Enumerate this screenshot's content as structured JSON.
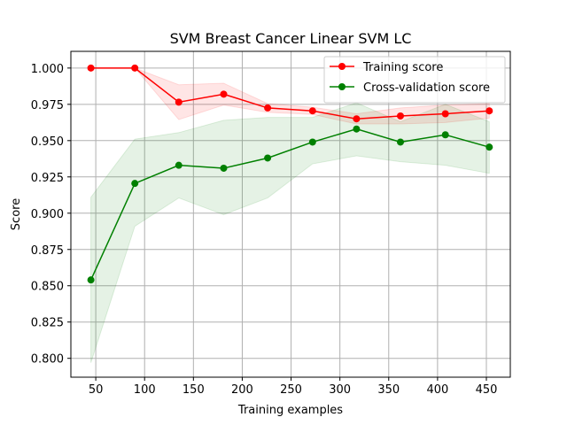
{
  "chart_data": {
    "type": "line",
    "title": "SVM Breast Cancer Linear SVM LC",
    "xlabel": "Training examples",
    "ylabel": "Score",
    "xlim": [
      24.5,
      474.5
    ],
    "ylim": [
      0.787,
      1.0115
    ],
    "xticks": [
      50,
      100,
      150,
      200,
      250,
      300,
      350,
      400,
      450
    ],
    "xtick_labels": [
      "50",
      "100",
      "150",
      "200",
      "250",
      "300",
      "350",
      "400",
      "450"
    ],
    "yticks": [
      0.8,
      0.825,
      0.85,
      0.875,
      0.9,
      0.925,
      0.95,
      0.975,
      1.0
    ],
    "ytick_labels": [
      "0.800",
      "0.825",
      "0.850",
      "0.875",
      "0.900",
      "0.925",
      "0.950",
      "0.975",
      "1.000"
    ],
    "grid": true,
    "legend_position": "top-right",
    "x": [
      45,
      90,
      135,
      181,
      226,
      272,
      317,
      362,
      408,
      453
    ],
    "series": [
      {
        "name": "Training score",
        "color": "#ff0000",
        "marker": "circle",
        "values": [
          1.0,
          1.0,
          0.9765,
          0.982,
          0.9725,
          0.9705,
          0.965,
          0.967,
          0.9685,
          0.9705
        ],
        "band_lower": [
          1.0,
          1.0,
          0.9645,
          0.9745,
          0.9695,
          0.968,
          0.9615,
          0.9615,
          0.9625,
          0.9655
        ],
        "band_upper": [
          1.0,
          1.0,
          0.9885,
          0.9895,
          0.9755,
          0.973,
          0.9685,
          0.9725,
          0.9745,
          0.9755
        ],
        "band_color": "#ff0000"
      },
      {
        "name": "Cross-validation score",
        "color": "#008000",
        "marker": "circle",
        "values": [
          0.854,
          0.9205,
          0.933,
          0.931,
          0.938,
          0.949,
          0.958,
          0.949,
          0.954,
          0.9455
        ],
        "band_lower": [
          0.797,
          0.891,
          0.9105,
          0.899,
          0.9105,
          0.934,
          0.9395,
          0.9355,
          0.933,
          0.9275
        ],
        "band_upper": [
          0.911,
          0.951,
          0.9555,
          0.964,
          0.966,
          0.966,
          0.976,
          0.963,
          0.975,
          0.963
        ],
        "band_color": "#008000"
      }
    ]
  }
}
